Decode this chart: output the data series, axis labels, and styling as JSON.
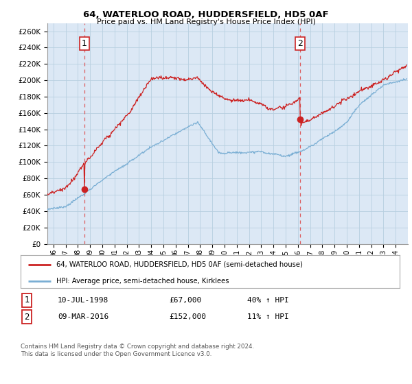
{
  "title": "64, WATERLOO ROAD, HUDDERSFIELD, HD5 0AF",
  "subtitle": "Price paid vs. HM Land Registry's House Price Index (HPI)",
  "ylabel_ticks": [
    "£0",
    "£20K",
    "£40K",
    "£60K",
    "£80K",
    "£100K",
    "£120K",
    "£140K",
    "£160K",
    "£180K",
    "£200K",
    "£220K",
    "£240K",
    "£260K"
  ],
  "ytick_values": [
    0,
    20000,
    40000,
    60000,
    80000,
    100000,
    120000,
    140000,
    160000,
    180000,
    200000,
    220000,
    240000,
    260000
  ],
  "ylim": [
    0,
    270000
  ],
  "sale1_date_num": 1998.53,
  "sale1_price": 67000,
  "sale1_label": "1",
  "sale1_date_str": "10-JUL-1998",
  "sale1_price_str": "£67,000",
  "sale1_hpi_str": "40% ↑ HPI",
  "sale2_date_num": 2016.18,
  "sale2_price": 152000,
  "sale2_label": "2",
  "sale2_date_str": "09-MAR-2016",
  "sale2_price_str": "£152,000",
  "sale2_hpi_str": "11% ↑ HPI",
  "legend_line1": "64, WATERLOO ROAD, HUDDERSFIELD, HD5 0AF (semi-detached house)",
  "legend_line2": "HPI: Average price, semi-detached house, Kirklees",
  "footnote": "Contains HM Land Registry data © Crown copyright and database right 2024.\nThis data is licensed under the Open Government Licence v3.0.",
  "hpi_color": "#7bafd4",
  "price_color": "#cc2222",
  "vline_color": "#dd4444",
  "background_color": "#ffffff",
  "plot_bg_color": "#dce8f5",
  "grid_color": "#b8cfe0",
  "xmin": 1995.5,
  "xmax": 2025.0
}
